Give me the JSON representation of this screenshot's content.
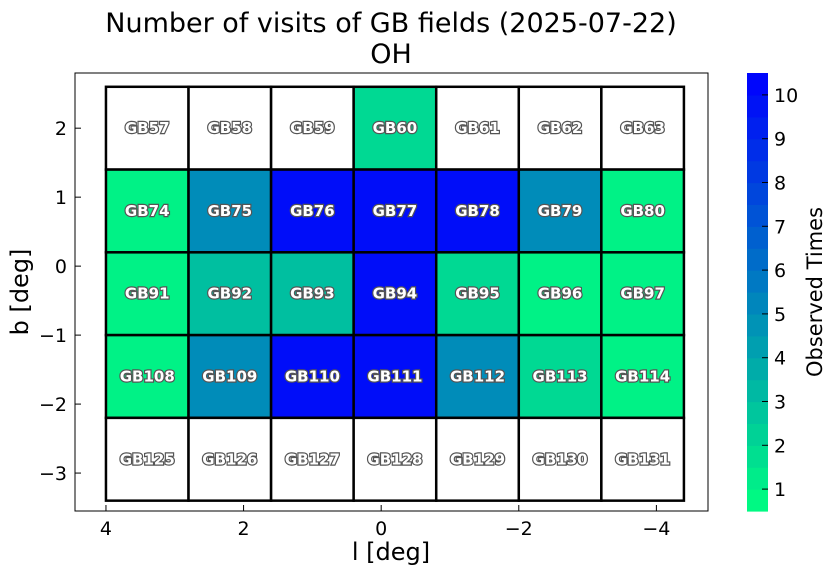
{
  "chart_data": {
    "type": "heatmap",
    "title": "Number of visits of GB fields (2025-07-22)",
    "subtitle": "OH",
    "xlabel": "l [deg]",
    "ylabel": "b [deg]",
    "xlim": [
      4.45,
      -4.75
    ],
    "ylim": [
      -3.55,
      2.8
    ],
    "x_reversed": true,
    "xticks": [
      4,
      2,
      0,
      -2,
      -4
    ],
    "xtick_labels": [
      "4",
      "2",
      "0",
      "−2",
      "−4"
    ],
    "yticks": [
      2,
      1,
      0,
      -1,
      -2,
      -3
    ],
    "ytick_labels": [
      "2",
      "1",
      "0",
      "−1",
      "−2",
      "−3"
    ],
    "grid": false,
    "fields": [
      {
        "name": "GB57",
        "l_min": 2.8,
        "l_max": 4.0,
        "b_min": 1.4,
        "b_max": 2.6,
        "visits": 0
      },
      {
        "name": "GB58",
        "l_min": 1.6,
        "l_max": 2.8,
        "b_min": 1.4,
        "b_max": 2.6,
        "visits": 0
      },
      {
        "name": "GB59",
        "l_min": 0.4,
        "l_max": 1.6,
        "b_min": 1.4,
        "b_max": 2.6,
        "visits": 0
      },
      {
        "name": "GB60",
        "l_min": -0.8,
        "l_max": 0.4,
        "b_min": 1.4,
        "b_max": 2.6,
        "visits": 2
      },
      {
        "name": "GB61",
        "l_min": -2.0,
        "l_max": -0.8,
        "b_min": 1.4,
        "b_max": 2.6,
        "visits": 0
      },
      {
        "name": "GB62",
        "l_min": -3.2,
        "l_max": -2.0,
        "b_min": 1.4,
        "b_max": 2.6,
        "visits": 0
      },
      {
        "name": "GB63",
        "l_min": -4.4,
        "l_max": -3.2,
        "b_min": 1.4,
        "b_max": 2.6,
        "visits": 0
      },
      {
        "name": "GB74",
        "l_min": 2.8,
        "l_max": 4.0,
        "b_min": 0.2,
        "b_max": 1.4,
        "visits": 1
      },
      {
        "name": "GB75",
        "l_min": 1.6,
        "l_max": 2.8,
        "b_min": 0.2,
        "b_max": 1.4,
        "visits": 5
      },
      {
        "name": "GB76",
        "l_min": 0.4,
        "l_max": 1.6,
        "b_min": 0.2,
        "b_max": 1.4,
        "visits": 10
      },
      {
        "name": "GB77",
        "l_min": -0.8,
        "l_max": 0.4,
        "b_min": 0.2,
        "b_max": 1.4,
        "visits": 10
      },
      {
        "name": "GB78",
        "l_min": -2.0,
        "l_max": -0.8,
        "b_min": 0.2,
        "b_max": 1.4,
        "visits": 10
      },
      {
        "name": "GB79",
        "l_min": -3.2,
        "l_max": -2.0,
        "b_min": 0.2,
        "b_max": 1.4,
        "visits": 5
      },
      {
        "name": "GB80",
        "l_min": -4.4,
        "l_max": -3.2,
        "b_min": 0.2,
        "b_max": 1.4,
        "visits": 1
      },
      {
        "name": "GB91",
        "l_min": 2.8,
        "l_max": 4.0,
        "b_min": -1.0,
        "b_max": 0.2,
        "visits": 1
      },
      {
        "name": "GB92",
        "l_min": 1.6,
        "l_max": 2.8,
        "b_min": -1.0,
        "b_max": 0.2,
        "visits": 3
      },
      {
        "name": "GB93",
        "l_min": 0.4,
        "l_max": 1.6,
        "b_min": -1.0,
        "b_max": 0.2,
        "visits": 3
      },
      {
        "name": "GB94",
        "l_min": -0.8,
        "l_max": 0.4,
        "b_min": -1.0,
        "b_max": 0.2,
        "visits": 10
      },
      {
        "name": "GB95",
        "l_min": -2.0,
        "l_max": -0.8,
        "b_min": -1.0,
        "b_max": 0.2,
        "visits": 2
      },
      {
        "name": "GB96",
        "l_min": -3.2,
        "l_max": -2.0,
        "b_min": -1.0,
        "b_max": 0.2,
        "visits": 1
      },
      {
        "name": "GB97",
        "l_min": -4.4,
        "l_max": -3.2,
        "b_min": -1.0,
        "b_max": 0.2,
        "visits": 1
      },
      {
        "name": "GB108",
        "l_min": 2.8,
        "l_max": 4.0,
        "b_min": -2.2,
        "b_max": -1.0,
        "visits": 1
      },
      {
        "name": "GB109",
        "l_min": 1.6,
        "l_max": 2.8,
        "b_min": -2.2,
        "b_max": -1.0,
        "visits": 5
      },
      {
        "name": "GB110",
        "l_min": 0.4,
        "l_max": 1.6,
        "b_min": -2.2,
        "b_max": -1.0,
        "visits": 10
      },
      {
        "name": "GB111",
        "l_min": -0.8,
        "l_max": 0.4,
        "b_min": -2.2,
        "b_max": -1.0,
        "visits": 10
      },
      {
        "name": "GB112",
        "l_min": -2.0,
        "l_max": -0.8,
        "b_min": -2.2,
        "b_max": -1.0,
        "visits": 5
      },
      {
        "name": "GB113",
        "l_min": -3.2,
        "l_max": -2.0,
        "b_min": -2.2,
        "b_max": -1.0,
        "visits": 2
      },
      {
        "name": "GB114",
        "l_min": -4.4,
        "l_max": -3.2,
        "b_min": -2.2,
        "b_max": -1.0,
        "visits": 1
      },
      {
        "name": "GB125",
        "l_min": 2.8,
        "l_max": 4.0,
        "b_min": -3.4,
        "b_max": -2.2,
        "visits": 0
      },
      {
        "name": "GB126",
        "l_min": 1.6,
        "l_max": 2.8,
        "b_min": -3.4,
        "b_max": -2.2,
        "visits": 0
      },
      {
        "name": "GB127",
        "l_min": 0.4,
        "l_max": 1.6,
        "b_min": -3.4,
        "b_max": -2.2,
        "visits": 0
      },
      {
        "name": "GB128",
        "l_min": -0.8,
        "l_max": 0.4,
        "b_min": -3.4,
        "b_max": -2.2,
        "visits": 0
      },
      {
        "name": "GB129",
        "l_min": -2.0,
        "l_max": -0.8,
        "b_min": -3.4,
        "b_max": -2.2,
        "visits": 0
      },
      {
        "name": "GB130",
        "l_min": -3.2,
        "l_max": -2.0,
        "b_min": -3.4,
        "b_max": -2.2,
        "visits": 0
      },
      {
        "name": "GB131",
        "l_min": -4.4,
        "l_max": -3.2,
        "b_min": -3.4,
        "b_max": -2.2,
        "visits": 0
      }
    ],
    "colorbar": {
      "label": "Observed Times",
      "range": [
        0.5,
        10.5
      ],
      "ticks": [
        1,
        2,
        3,
        4,
        5,
        6,
        7,
        8,
        9,
        10
      ],
      "tick_labels": [
        "1",
        "2",
        "3",
        "4",
        "5",
        "6",
        "7",
        "8",
        "9",
        "10"
      ],
      "colormap": "winter_r",
      "color_low": "#00ff80",
      "color_high": "#0000ff",
      "unvisited_color": "#ffffff"
    }
  }
}
